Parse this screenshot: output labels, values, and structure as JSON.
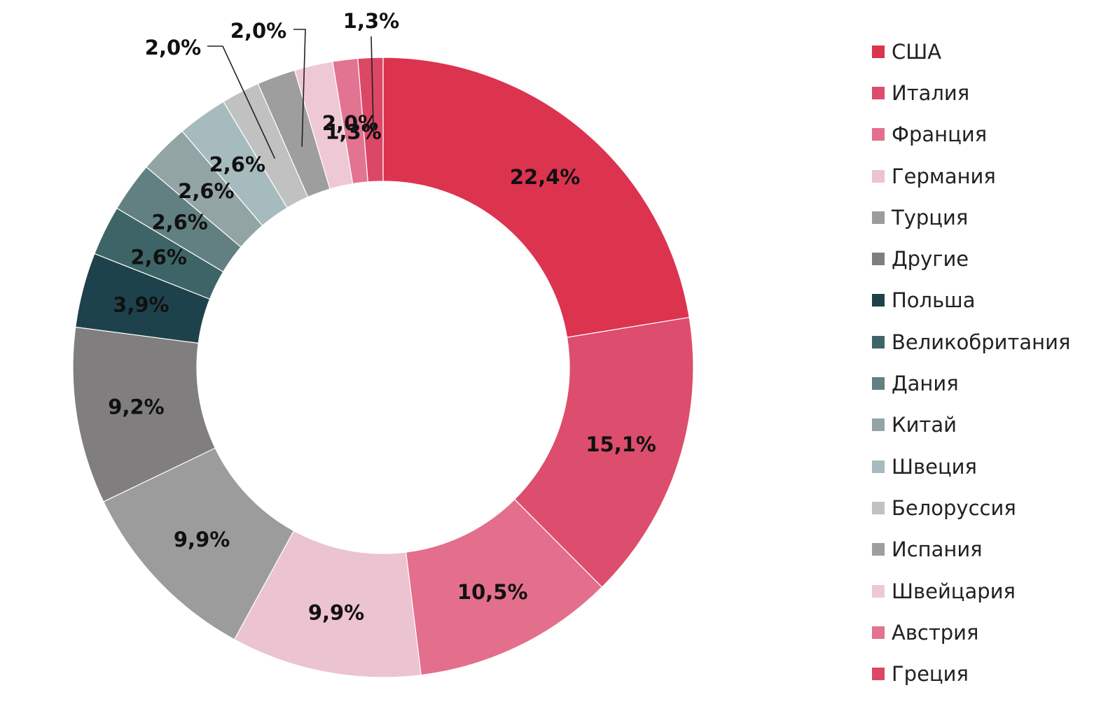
{
  "chart_data": {
    "type": "pie",
    "variant": "donut",
    "title": "",
    "legend_position": "right",
    "slices": [
      {
        "name": "США",
        "value": 22.4,
        "label": "22,4%",
        "color": "#dc334f"
      },
      {
        "name": "Италия",
        "value": 15.1,
        "label": "15,1%",
        "color": "#dd4d6d"
      },
      {
        "name": "Франция",
        "value": 10.5,
        "label": "10,5%",
        "color": "#e36f8d"
      },
      {
        "name": "Германия",
        "value": 9.9,
        "label": "9,9%",
        "color": "#ecc3d0"
      },
      {
        "name": "Турция",
        "value": 9.9,
        "label": "9,9%",
        "color": "#9c9c9c"
      },
      {
        "name": "Другие",
        "value": 9.2,
        "label": "9,2%",
        "color": "#807e7f"
      },
      {
        "name": "Польша",
        "value": 3.9,
        "label": "3,9%",
        "color": "#1e424b"
      },
      {
        "name": "Великобритания",
        "value": 2.6,
        "label": "2,6%",
        "color": "#3d6567"
      },
      {
        "name": "Дания",
        "value": 2.6,
        "label": "2,6%",
        "color": "#628081"
      },
      {
        "name": "Китай",
        "value": 2.6,
        "label": "2,6%",
        "color": "#93a4a5"
      },
      {
        "name": "Швеция",
        "value": 2.6,
        "label": "2,6%",
        "color": "#a6bbbe"
      },
      {
        "name": "Белоруссия",
        "value": 2.0,
        "label": "2,0%",
        "color": "#c1c1c1"
      },
      {
        "name": "Испания",
        "value": 2.0,
        "label": "2,0%",
        "color": "#9f9e9e"
      },
      {
        "name": "Швейцария",
        "value": 2.0,
        "label": "2,0%",
        "color": "#efc8d5"
      },
      {
        "name": "Австрия",
        "value": 1.3,
        "label": "1,3%",
        "color": "#e27391"
      },
      {
        "name": "Греция",
        "value": 1.3,
        "label": "1,3%",
        "color": "#dc4766"
      }
    ]
  }
}
